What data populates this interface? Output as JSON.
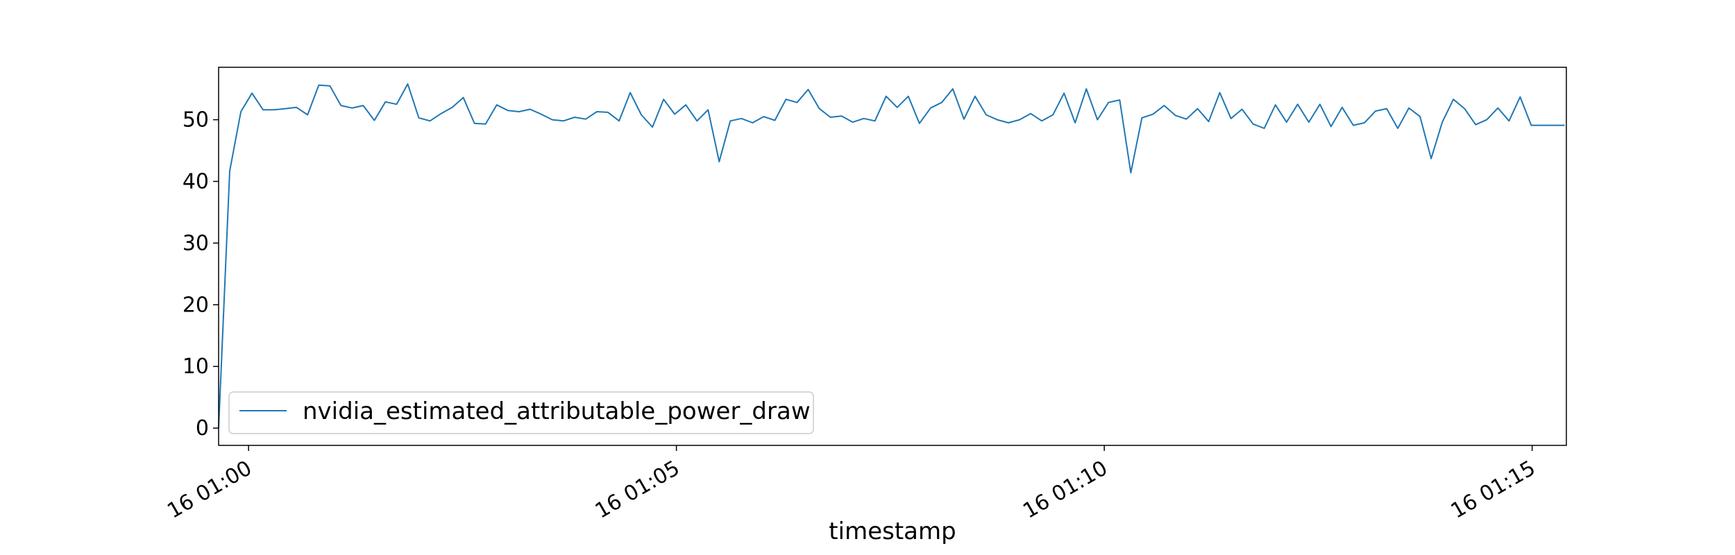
{
  "chart_data": {
    "type": "line",
    "title": "",
    "xlabel": "timestamp",
    "ylabel": "",
    "x_unit": "minutes",
    "xlim": [
      "01:00 - 0.35 min",
      "01:15 + 0.4 min"
    ],
    "xlim_minutes": [
      -0.35,
      15.4
    ],
    "ylim": [
      -2.8,
      58.5
    ],
    "x_ticks": [
      {
        "label": "16 01:00",
        "minute": 0
      },
      {
        "label": "16 01:05",
        "minute": 5
      },
      {
        "label": "16 01:10",
        "minute": 10
      },
      {
        "label": "16 01:15",
        "minute": 15
      }
    ],
    "y_ticks": [
      0,
      10,
      20,
      30,
      40,
      50
    ],
    "grid": false,
    "legend_position": "lower left",
    "series": [
      {
        "name": "nvidia_estimated_attributable_power_draw",
        "color": "#1f77b4",
        "x": [
          -0.35,
          -0.22,
          -0.09,
          0.04,
          0.17,
          0.3,
          0.43,
          0.56,
          0.69,
          0.82,
          0.95,
          1.08,
          1.21,
          1.34,
          1.47,
          1.6,
          1.73,
          1.86,
          1.99,
          2.12,
          2.25,
          2.38,
          2.51,
          2.64,
          2.77,
          2.9,
          3.03,
          3.16,
          3.29,
          3.42,
          3.55,
          3.68,
          3.81,
          3.94,
          4.07,
          4.2,
          4.33,
          4.46,
          4.59,
          4.72,
          4.85,
          4.98,
          5.11,
          5.24,
          5.37,
          5.5,
          5.63,
          5.76,
          5.89,
          6.02,
          6.15,
          6.28,
          6.41,
          6.54,
          6.67,
          6.8,
          6.93,
          7.06,
          7.19,
          7.32,
          7.45,
          7.58,
          7.71,
          7.84,
          7.97,
          8.1,
          8.23,
          8.36,
          8.49,
          8.62,
          8.75,
          8.88,
          9.01,
          9.14,
          9.27,
          9.4,
          9.53,
          9.66,
          9.79,
          9.92,
          10.05,
          10.18,
          10.31,
          10.44,
          10.57,
          10.7,
          10.83,
          10.96,
          11.09,
          11.22,
          11.35,
          11.48,
          11.61,
          11.74,
          11.87,
          12.0,
          12.13,
          12.26,
          12.39,
          12.52,
          12.65,
          12.78,
          12.91,
          13.04,
          13.17,
          13.3,
          13.43,
          13.56,
          13.69,
          13.82,
          13.95,
          14.08,
          14.21,
          14.34,
          14.47,
          14.6,
          14.73,
          14.86,
          14.99,
          15.12,
          15.25,
          15.38
        ],
        "y": [
          0,
          41.7,
          51.3,
          54.3,
          51.6,
          51.6,
          51.8,
          52.0,
          50.8,
          55.6,
          55.5,
          52.3,
          51.9,
          52.3,
          49.9,
          52.9,
          52.5,
          55.8,
          50.3,
          49.8,
          51.0,
          52.0,
          53.6,
          49.4,
          49.3,
          52.4,
          51.5,
          51.3,
          51.7,
          50.9,
          50.0,
          49.8,
          50.4,
          50.1,
          51.3,
          51.2,
          49.8,
          54.4,
          50.8,
          48.8,
          53.3,
          50.9,
          52.4,
          49.8,
          51.6,
          43.2,
          49.8,
          50.2,
          49.5,
          50.5,
          49.9,
          53.3,
          52.8,
          54.9,
          51.8,
          50.4,
          50.6,
          49.6,
          50.2,
          49.8,
          53.8,
          52.0,
          53.8,
          49.4,
          51.9,
          52.8,
          55.0,
          50.1,
          53.8,
          50.8,
          50.0,
          49.5,
          50.0,
          51.0,
          49.8,
          50.8,
          54.3,
          49.5,
          55.0,
          50.0,
          52.8,
          53.2,
          41.4,
          50.3,
          50.9,
          52.3,
          50.7,
          50.1,
          51.8,
          49.7,
          54.4,
          50.2,
          51.7,
          49.3,
          48.6,
          52.4,
          49.6,
          52.5,
          49.6,
          52.5,
          48.9,
          52.0,
          49.1,
          49.5,
          51.4,
          51.8,
          48.6,
          51.9,
          50.5,
          43.7,
          49.6,
          53.3,
          51.8,
          49.2,
          50.0,
          51.9,
          49.8,
          53.7,
          49.1,
          49.1,
          49.1,
          49.1
        ]
      }
    ]
  }
}
